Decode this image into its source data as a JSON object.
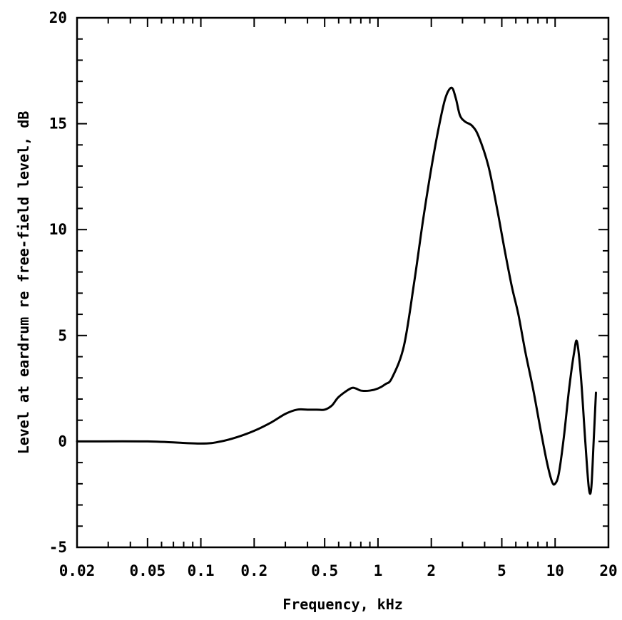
{
  "chart_data": {
    "type": "line",
    "title": "",
    "xlabel": "Frequency, kHz",
    "ylabel": "Level at eardrum re free-field level, dB",
    "x_scale": "log",
    "xlim": [
      0.02,
      20
    ],
    "ylim": [
      -5,
      20
    ],
    "x_ticks": [
      0.02,
      0.05,
      0.1,
      0.2,
      0.5,
      1,
      2,
      5,
      10,
      20
    ],
    "x_tick_labels": [
      "0.02",
      "0.05",
      "0.1",
      "0.2",
      "0.5",
      "1",
      "2",
      "5",
      "10",
      "20"
    ],
    "y_ticks": [
      -5,
      0,
      5,
      10,
      15,
      20
    ],
    "y_tick_labels": [
      "-5",
      "0",
      "5",
      "10",
      "15",
      "20"
    ],
    "grid": false,
    "legend": "none",
    "line_color": "#000000",
    "series": [
      {
        "x": [
          0.02,
          0.05,
          0.1,
          0.13,
          0.16,
          0.2,
          0.25,
          0.3,
          0.35,
          0.4,
          0.45,
          0.5,
          0.55,
          0.6,
          0.7,
          0.75,
          0.8,
          0.9,
          1.0,
          1.1,
          1.2,
          1.4,
          1.6,
          1.8,
          2.0,
          2.2,
          2.4,
          2.6,
          2.75,
          2.9,
          3.1,
          3.4,
          3.7,
          4.2,
          4.7,
          5.2,
          5.7,
          6.2,
          6.8,
          7.5,
          8.3,
          9.0,
          9.6,
          10.0,
          10.5,
          11.2,
          12.0,
          12.8,
          13.3,
          14.0,
          14.8,
          15.5,
          16.0,
          16.5,
          17.0
        ],
        "y": [
          0,
          0,
          -0.1,
          0.0,
          0.2,
          0.5,
          0.9,
          1.3,
          1.5,
          1.5,
          1.5,
          1.5,
          1.7,
          2.1,
          2.5,
          2.5,
          2.4,
          2.4,
          2.5,
          2.7,
          3.0,
          4.5,
          7.5,
          10.5,
          12.9,
          14.8,
          16.2,
          16.7,
          16.2,
          15.4,
          15.1,
          14.9,
          14.4,
          13.0,
          11.0,
          9.0,
          7.3,
          6.0,
          4.2,
          2.5,
          0.5,
          -1.0,
          -1.9,
          -2.0,
          -1.5,
          0.2,
          2.5,
          4.2,
          4.7,
          3.0,
          0.0,
          -2.2,
          -2.2,
          0.0,
          2.3
        ]
      }
    ]
  }
}
